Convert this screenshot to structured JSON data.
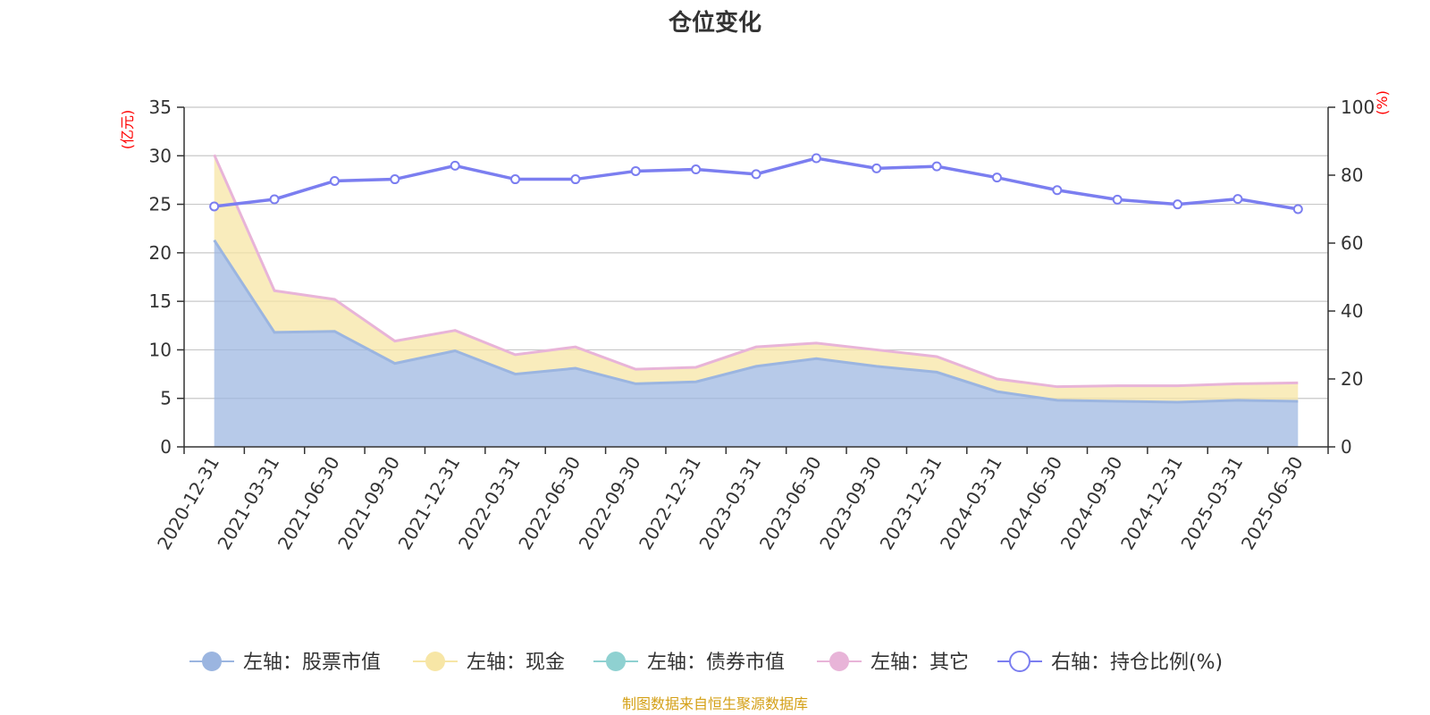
{
  "title": "仓位变化",
  "source": "制图数据来自恒生聚源数据库",
  "colors": {
    "stock": "#9bb5e0",
    "cash": "#f7e6a6",
    "bond": "#8fd1d1",
    "other": "#e8b4d8",
    "ratio": "#7b7ef0",
    "unit": "#ff0000",
    "source": "#d4a017"
  },
  "chart_data": {
    "type": "area",
    "title": "仓位变化",
    "x": [
      "2020-12-31",
      "2021-03-31",
      "2021-06-30",
      "2021-09-30",
      "2021-12-31",
      "2022-03-31",
      "2022-06-30",
      "2022-09-30",
      "2022-12-31",
      "2023-03-31",
      "2023-06-30",
      "2023-09-30",
      "2023-12-31",
      "2024-03-31",
      "2024-06-30",
      "2024-09-30",
      "2024-12-31",
      "2025-03-31",
      "2025-06-30"
    ],
    "left_axis": {
      "label": "(亿元)",
      "ylim": [
        0,
        35
      ],
      "ticks": [
        0,
        5,
        10,
        15,
        20,
        25,
        30,
        35
      ]
    },
    "right_axis": {
      "label": "(%)",
      "ylim": [
        0,
        100
      ],
      "ticks": [
        0,
        20,
        40,
        60,
        80,
        100
      ]
    },
    "grid": true,
    "legend_position": "bottom",
    "series": [
      {
        "name": "左轴：股票市值",
        "axis": "left",
        "kind": "area",
        "stacked": true,
        "values": [
          21.3,
          11.8,
          11.9,
          8.6,
          9.9,
          7.5,
          8.1,
          6.5,
          6.7,
          8.3,
          9.1,
          8.3,
          7.7,
          5.7,
          4.8,
          4.7,
          4.6,
          4.8,
          4.7
        ]
      },
      {
        "name": "左轴：现金",
        "axis": "left",
        "kind": "area",
        "stacked": true,
        "values": [
          8.8,
          4.3,
          3.3,
          2.3,
          2.1,
          2.0,
          2.2,
          1.5,
          1.5,
          2.0,
          1.6,
          1.7,
          1.6,
          1.3,
          1.4,
          1.6,
          1.7,
          1.7,
          1.9
        ]
      },
      {
        "name": "左轴：债券市值",
        "axis": "left",
        "kind": "area",
        "stacked": true,
        "values": [
          0,
          0,
          0,
          0,
          0,
          0,
          0,
          0,
          0,
          0,
          0,
          0,
          0,
          0,
          0,
          0,
          0,
          0,
          0
        ]
      },
      {
        "name": "左轴：其它",
        "axis": "left",
        "kind": "area",
        "stacked": true,
        "values": [
          0,
          0,
          0,
          0,
          0,
          0,
          0,
          0,
          0,
          0,
          0,
          0,
          0,
          0,
          0,
          0,
          0,
          0,
          0
        ]
      },
      {
        "name": "右轴：持仓比例(%)",
        "axis": "right",
        "kind": "line",
        "values": [
          70.8,
          72.9,
          78.3,
          78.8,
          82.8,
          78.8,
          78.8,
          81.2,
          81.7,
          80.3,
          85.0,
          82.0,
          82.6,
          79.3,
          75.6,
          72.8,
          71.4,
          73.0,
          70.0
        ]
      }
    ]
  }
}
